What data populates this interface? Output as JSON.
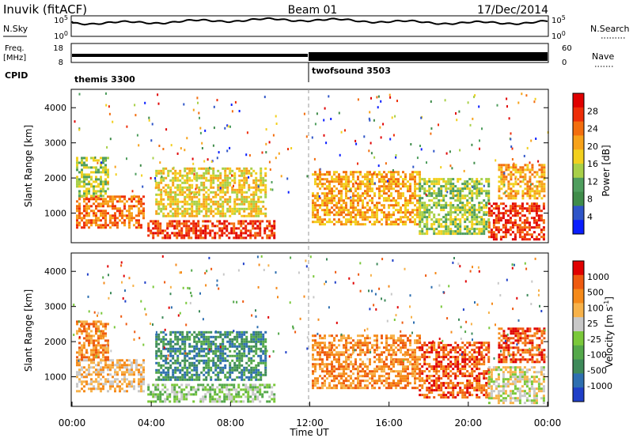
{
  "header": {
    "station": "Inuvik (fitACF)",
    "beam": "Beam 01",
    "date": "17/Dec/2014"
  },
  "nsky_panel": {
    "left_label": "N.Sky",
    "right_label": "N.Search",
    "left_ticks": [
      "10^5",
      "10^0"
    ],
    "right_ticks": [
      "10^5",
      "10^0"
    ]
  },
  "freq_panel": {
    "left_label_1": "Freq.",
    "left_label_2": "[MHz]",
    "right_label": "Nave",
    "left_ticks": [
      "18",
      "8"
    ],
    "right_ticks": [
      "60",
      "0"
    ]
  },
  "cpid": {
    "label": "CPID",
    "modes": [
      {
        "name": "themis 3300",
        "start_hour": 0
      },
      {
        "name": "twofsound 3503",
        "start_hour": 12
      }
    ]
  },
  "chart_data": [
    {
      "type": "heatmap",
      "name": "power",
      "ylabel": "Slant Range [km]",
      "xlabel": "Time UT",
      "xlim": [
        0,
        24
      ],
      "ylim": [
        180,
        4500
      ],
      "yticks": [
        "1000",
        "2000",
        "3000",
        "4000"
      ],
      "colorbar_label": "Power [dB]",
      "colorbar_ticks": [
        "4",
        "8",
        "12",
        "16",
        "20",
        "24",
        "28"
      ],
      "colorbar_colors": [
        "#0a1eff",
        "#2f55c8",
        "#3f8c4a",
        "#4f9e5e",
        "#a8d048",
        "#f2d01e",
        "#f7a21a",
        "#f36e0e",
        "#ee2e08",
        "#e00000"
      ],
      "echo_regions": [
        {
          "t0": 0.2,
          "t1": 3.6,
          "r0": 600,
          "r1": 1500,
          "level": 7
        },
        {
          "t0": 0.2,
          "t1": 1.8,
          "r0": 1500,
          "r1": 2600,
          "level": 4
        },
        {
          "t0": 3.8,
          "t1": 10.2,
          "r0": 280,
          "r1": 800,
          "level": 8
        },
        {
          "t0": 4.2,
          "t1": 9.8,
          "r0": 900,
          "r1": 2300,
          "level": 5
        },
        {
          "t0": 12.1,
          "t1": 17.5,
          "r0": 700,
          "r1": 2200,
          "level": 6
        },
        {
          "t0": 17.5,
          "t1": 21.0,
          "r0": 400,
          "r1": 2000,
          "level": 4
        },
        {
          "t0": 21.0,
          "t1": 23.8,
          "r0": 250,
          "r1": 1300,
          "level": 8
        },
        {
          "t0": 21.5,
          "t1": 23.8,
          "r0": 1400,
          "r1": 2400,
          "level": 6
        }
      ]
    },
    {
      "type": "heatmap",
      "name": "velocity",
      "ylabel": "Slant Range [km]",
      "xlabel": "Time UT",
      "xlim": [
        0,
        24
      ],
      "ylim": [
        180,
        4500
      ],
      "xticks": [
        "00:00",
        "04:00",
        "08:00",
        "12:00",
        "16:00",
        "20:00",
        "00:00"
      ],
      "yticks": [
        "1000",
        "2000",
        "3000",
        "4000"
      ],
      "colorbar_label": "Velocity [m s",
      "colorbar_label_sup": "-1",
      "colorbar_label_end": "]",
      "colorbar_ticks": [
        "1000",
        "500",
        "100",
        "25",
        "-25",
        "-100",
        "-500",
        "-1000"
      ],
      "colorbar_colors": [
        "#1f3fc8",
        "#2e6fb0",
        "#3e8a5a",
        "#54a84a",
        "#7ac83a",
        "#c8c8c8",
        "#f7b24a",
        "#f58a1a",
        "#ee5a10",
        "#e00000"
      ],
      "echo_regions": [
        {
          "t0": 0.2,
          "t1": 3.6,
          "r0": 600,
          "r1": 1500,
          "level": 6
        },
        {
          "t0": 0.2,
          "t1": 1.8,
          "r0": 1500,
          "r1": 2600,
          "level": 7
        },
        {
          "t0": 3.8,
          "t1": 10.2,
          "r0": 280,
          "r1": 800,
          "level": 4
        },
        {
          "t0": 4.2,
          "t1": 9.8,
          "r0": 900,
          "r1": 2300,
          "level": 2
        },
        {
          "t0": 12.1,
          "t1": 17.5,
          "r0": 700,
          "r1": 2200,
          "level": 7
        },
        {
          "t0": 17.5,
          "t1": 21.0,
          "r0": 400,
          "r1": 2000,
          "level": 8
        },
        {
          "t0": 21.0,
          "t1": 23.8,
          "r0": 250,
          "r1": 1300,
          "level": 5
        },
        {
          "t0": 21.5,
          "t1": 23.8,
          "r0": 1400,
          "r1": 2400,
          "level": 8
        }
      ]
    }
  ]
}
